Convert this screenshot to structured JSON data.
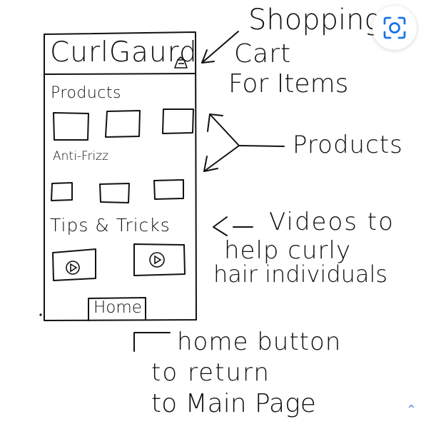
{
  "phone": {
    "brand": "CurlGaurd",
    "sections": [
      {
        "title": "Products",
        "tile_count": 3
      },
      {
        "title": "Anti-Frizz",
        "tile_count": 3
      },
      {
        "title": "Tips & Tricks",
        "video_count": 2
      }
    ],
    "home_button": "Home"
  },
  "annotations": {
    "cart_line1": "Shopping",
    "cart_line2": "Cart",
    "cart_line3": "For Items",
    "products": "Products",
    "videos_line1": "Videos to",
    "videos_line2": "help curly",
    "videos_line3": "hair individuals",
    "home_line1": "home button",
    "home_line2": "to return",
    "home_line3": "to Main Page"
  },
  "icons": {
    "lens": "google-lens-icon",
    "cart": "shopping-cart-icon",
    "play": "play-icon",
    "collapse": "chevron-up-icon"
  },
  "colors": {
    "ink": "#111111",
    "lens_accent": "#1a73e8"
  }
}
